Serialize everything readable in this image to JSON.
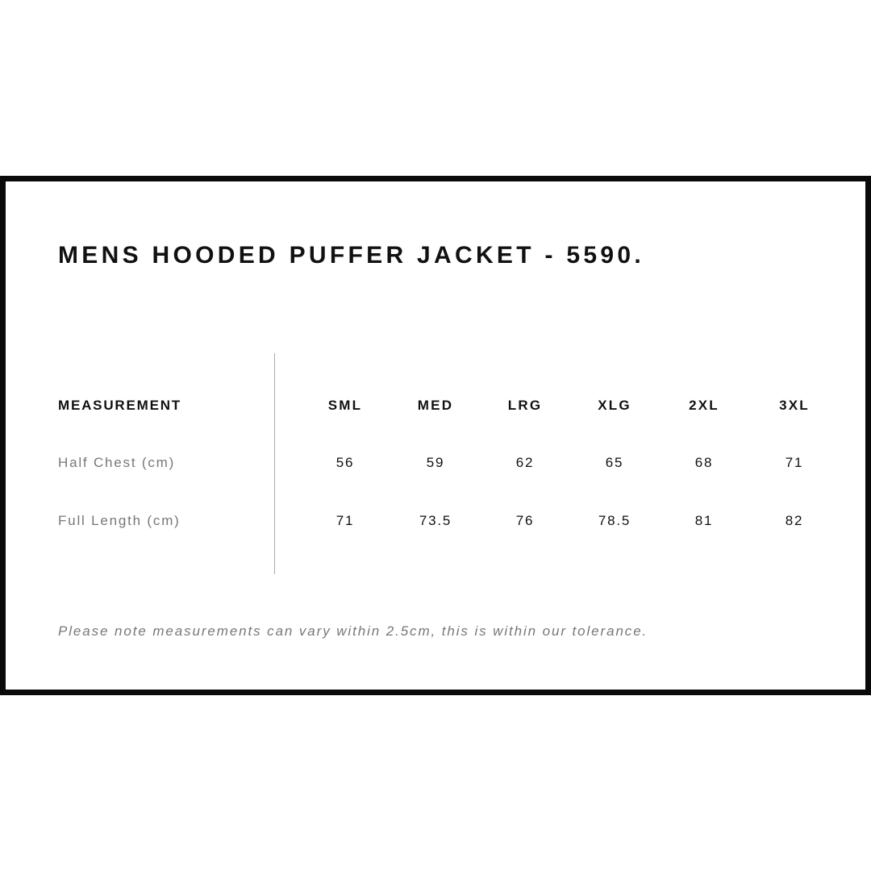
{
  "title": "MENS HOODED PUFFER JACKET - 5590.",
  "table": {
    "header_label": "MEASUREMENT",
    "sizes": [
      "SML",
      "MED",
      "LRG",
      "XLG",
      "2XL",
      "3XL"
    ],
    "rows": [
      {
        "label": "Half Chest (cm)",
        "values": [
          "56",
          "59",
          "62",
          "65",
          "68",
          "71"
        ]
      },
      {
        "label": "Full Length (cm)",
        "values": [
          "71",
          "73.5",
          "76",
          "78.5",
          "81",
          "82"
        ]
      }
    ]
  },
  "note": "Please note measurements can vary within 2.5cm, this is within our tolerance.",
  "colors": {
    "border": "#0a0a0a",
    "text": "#111111",
    "muted": "#777777"
  }
}
